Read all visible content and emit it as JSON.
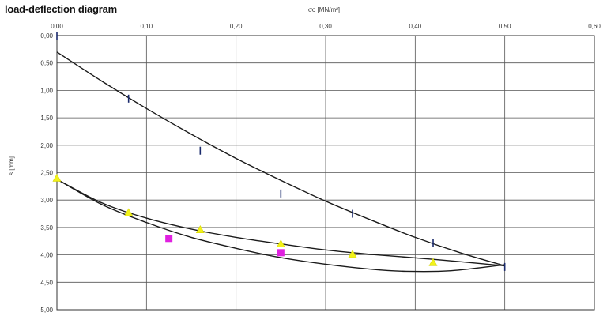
{
  "chart_data": {
    "type": "scatter",
    "title": "load-deflection diagram",
    "xlabel": "σo [MN/m²]",
    "ylabel": "s [mm]",
    "xlim": [
      0,
      0.6
    ],
    "ylim": [
      0,
      5
    ],
    "y_inverted": true,
    "grid": true,
    "x_ticks": [
      "0,00",
      "0,10",
      "0,20",
      "0,30",
      "0,40",
      "0,50",
      "0,60"
    ],
    "y_ticks": [
      "0,00",
      "0,50",
      "1,00",
      "1,50",
      "2,00",
      "2,50",
      "3,00",
      "3,50",
      "4,00",
      "4,50",
      "5,00"
    ],
    "series": [
      {
        "marker": "dash",
        "color": "#1a2a6c",
        "points": [
          [
            0.0,
            0.0
          ],
          [
            0.08,
            1.15
          ],
          [
            0.16,
            2.1
          ],
          [
            0.25,
            2.88
          ],
          [
            0.33,
            3.25
          ],
          [
            0.42,
            3.78
          ],
          [
            0.5,
            4.22
          ]
        ]
      },
      {
        "marker": "triangle",
        "color": "#f2f21a",
        "points": [
          [
            0.0,
            2.6
          ],
          [
            0.08,
            3.23
          ],
          [
            0.16,
            3.54
          ],
          [
            0.25,
            3.8
          ],
          [
            0.33,
            3.99
          ],
          [
            0.42,
            4.14
          ]
        ]
      },
      {
        "marker": "square",
        "color": "#e020e0",
        "points": [
          [
            0.125,
            3.7
          ],
          [
            0.25,
            3.96
          ]
        ]
      }
    ],
    "curves": [
      {
        "color": "#1a1a1a",
        "points": [
          [
            0.0,
            0.3
          ],
          [
            0.05,
            0.83
          ],
          [
            0.1,
            1.33
          ],
          [
            0.15,
            1.8
          ],
          [
            0.2,
            2.24
          ],
          [
            0.25,
            2.64
          ],
          [
            0.3,
            3.02
          ],
          [
            0.35,
            3.36
          ],
          [
            0.4,
            3.68
          ],
          [
            0.45,
            3.96
          ],
          [
            0.5,
            4.2
          ]
        ]
      },
      {
        "color": "#1a1a1a",
        "points": [
          [
            0.0,
            2.62
          ],
          [
            0.05,
            3.08
          ],
          [
            0.1,
            3.41
          ],
          [
            0.15,
            3.68
          ],
          [
            0.2,
            3.88
          ],
          [
            0.25,
            4.05
          ],
          [
            0.3,
            4.17
          ],
          [
            0.35,
            4.26
          ],
          [
            0.39,
            4.3
          ],
          [
            0.44,
            4.29
          ],
          [
            0.5,
            4.18
          ]
        ]
      },
      {
        "color": "#1a1a1a",
        "points": [
          [
            0.0,
            2.62
          ],
          [
            0.05,
            3.05
          ],
          [
            0.1,
            3.33
          ],
          [
            0.15,
            3.53
          ],
          [
            0.2,
            3.68
          ],
          [
            0.25,
            3.8
          ],
          [
            0.3,
            3.91
          ],
          [
            0.35,
            3.99
          ],
          [
            0.42,
            4.08
          ],
          [
            0.5,
            4.2
          ]
        ]
      }
    ]
  }
}
